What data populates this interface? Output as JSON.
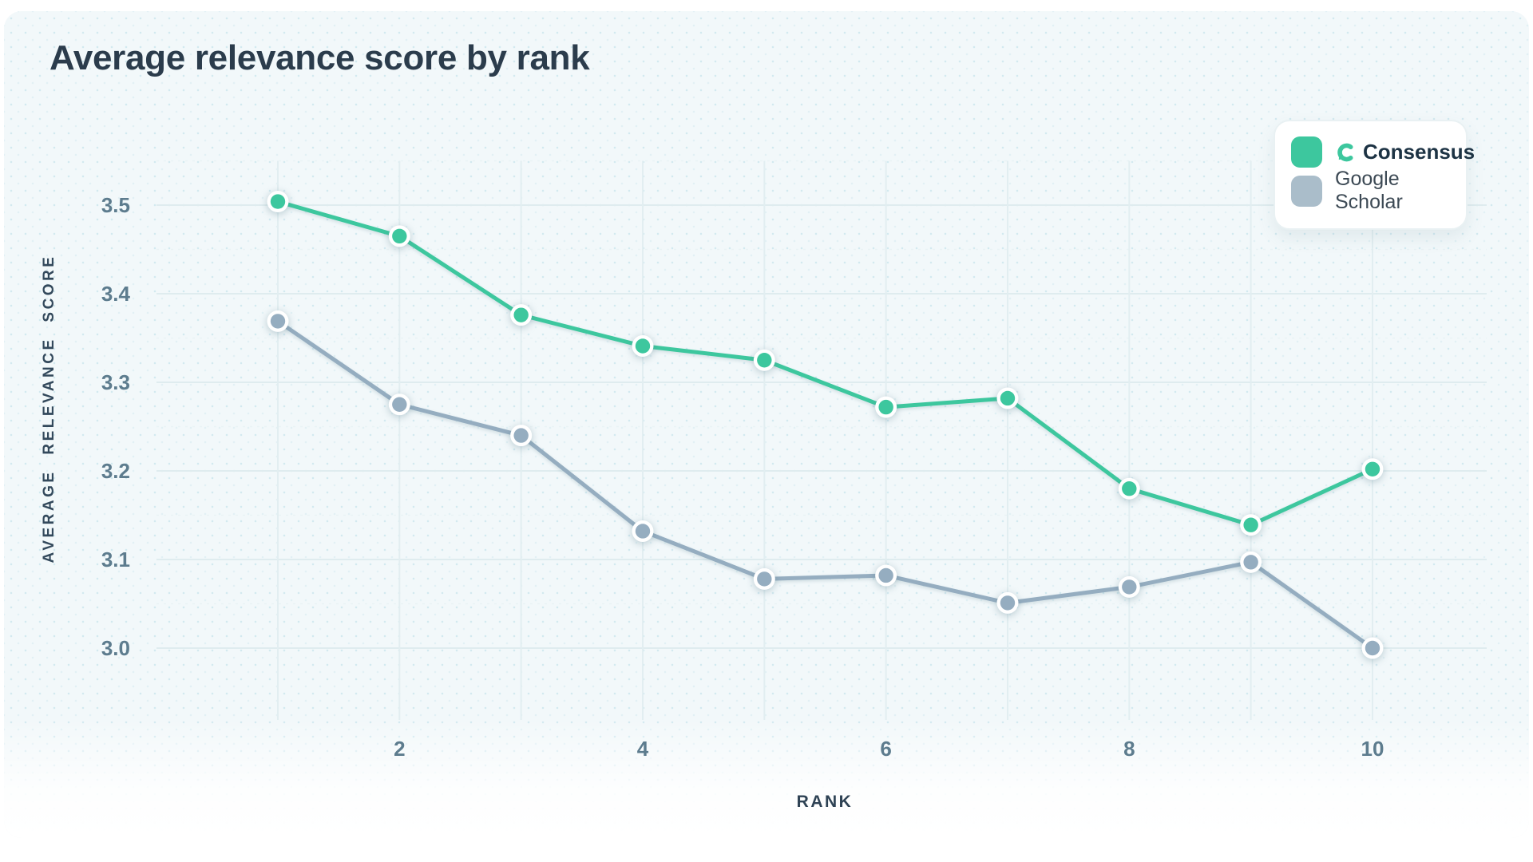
{
  "page": {
    "background": "#ffffff",
    "card_background": "#f2f8fa"
  },
  "chart_data": {
    "type": "line",
    "title": "Average relevance score by rank",
    "xlabel": "RANK",
    "ylabel": "AVERAGE RELEVANCE SCORE",
    "x": [
      1,
      2,
      3,
      4,
      5,
      6,
      7,
      8,
      9,
      10
    ],
    "xticks": [
      2,
      4,
      6,
      8,
      10
    ],
    "yticks": [
      3.0,
      3.1,
      3.2,
      3.3,
      3.4,
      3.5
    ],
    "ylim": [
      2.92,
      3.55
    ],
    "grid": true,
    "legend_position": "top-right",
    "series": [
      {
        "name": "Consensus",
        "color": "#3dc79e",
        "legend_swatch": "#3dc79e",
        "values": [
          3.504,
          3.465,
          3.376,
          3.341,
          3.325,
          3.272,
          3.282,
          3.18,
          3.139,
          3.202
        ]
      },
      {
        "name": "Google Scholar",
        "color": "#95adc0",
        "legend_swatch": "#aabdca",
        "values": [
          3.369,
          3.275,
          3.24,
          3.132,
          3.078,
          3.082,
          3.051,
          3.069,
          3.097,
          3.0
        ]
      }
    ]
  },
  "colors": {
    "title": "#2b3c4c",
    "axis_title": "#33495c",
    "tick_label": "#5d7c8e",
    "grid_major": "#dfecef",
    "grid_minor": "#e9f3f5",
    "legend_border": "#e9f1f3"
  }
}
